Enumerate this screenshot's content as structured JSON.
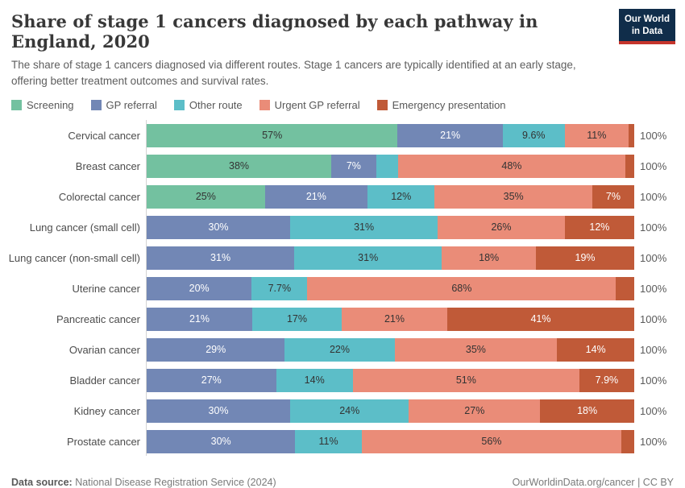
{
  "header": {
    "title": "Share of stage 1 cancers diagnosed by each pathway in England, 2020",
    "subtitle": "The share of stage 1 cancers diagnosed via different routes. Stage 1 cancers are typically identified at an early stage, offering better treatment outcomes and survival rates.",
    "logo": {
      "line1": "Our World",
      "line2": "in Data",
      "bg_color": "#102d4a",
      "accent_color": "#c5352c"
    }
  },
  "legend": {
    "items": [
      {
        "label": "Screening",
        "color": "#73c1a0"
      },
      {
        "label": "GP referral",
        "color": "#7287b5"
      },
      {
        "label": "Other route",
        "color": "#5cbec8"
      },
      {
        "label": "Urgent GP referral",
        "color": "#ea8c78"
      },
      {
        "label": "Emergency presentation",
        "color": "#c05a38"
      }
    ]
  },
  "chart_data": {
    "type": "bar",
    "stacked": true,
    "orientation": "horizontal",
    "unit": "%",
    "xlim": [
      0,
      100
    ],
    "grid": false,
    "legend_position": "top",
    "series": [
      {
        "name": "Screening",
        "color": "#73c1a0",
        "label_color": "#333333"
      },
      {
        "name": "GP referral",
        "color": "#7287b5",
        "label_color": "#ffffff"
      },
      {
        "name": "Other route",
        "color": "#5cbec8",
        "label_color": "#333333"
      },
      {
        "name": "Urgent GP referral",
        "color": "#ea8c78",
        "label_color": "#333333"
      },
      {
        "name": "Emergency presentation",
        "color": "#c05a38",
        "label_color": "#ffffff"
      }
    ],
    "categories": [
      "Cervical cancer",
      "Breast cancer",
      "Colorectal cancer",
      "Lung cancer (small cell)",
      "Lung cancer (non-small cell)",
      "Uterine cancer",
      "Pancreatic cancer",
      "Ovarian cancer",
      "Bladder cancer",
      "Kidney cancer",
      "Prostate cancer"
    ],
    "rows": [
      {
        "category": "Cervical cancer",
        "values": [
          57,
          21,
          9.6,
          11,
          1.4
        ],
        "labels": [
          "57%",
          "21%",
          "9.6%",
          "11%",
          ""
        ]
      },
      {
        "category": "Breast cancer",
        "values": [
          38,
          7,
          5,
          48,
          2
        ],
        "labels": [
          "38%",
          "7%",
          "",
          "48%",
          ""
        ]
      },
      {
        "category": "Colorectal cancer",
        "values": [
          25,
          21,
          12,
          35,
          7
        ],
        "labels": [
          "25%",
          "21%",
          "12%",
          "35%",
          "7%"
        ]
      },
      {
        "category": "Lung cancer (small cell)",
        "values": [
          0,
          30,
          31,
          26,
          12
        ],
        "labels": [
          "",
          "30%",
          "31%",
          "26%",
          "12%"
        ]
      },
      {
        "category": "Lung cancer (non-small cell)",
        "values": [
          0,
          31,
          31,
          18,
          19
        ],
        "labels": [
          "",
          "31%",
          "31%",
          "18%",
          "19%"
        ]
      },
      {
        "category": "Uterine cancer",
        "values": [
          0,
          20,
          7.7,
          68,
          4.3
        ],
        "labels": [
          "",
          "20%",
          "7.7%",
          "68%",
          ""
        ]
      },
      {
        "category": "Pancreatic cancer",
        "values": [
          0,
          21,
          17,
          21,
          41
        ],
        "labels": [
          "",
          "21%",
          "17%",
          "21%",
          "41%"
        ]
      },
      {
        "category": "Ovarian cancer",
        "values": [
          0,
          29,
          22,
          35,
          14
        ],
        "labels": [
          "",
          "29%",
          "22%",
          "35%",
          "14%"
        ]
      },
      {
        "category": "Bladder cancer",
        "values": [
          0,
          27,
          14,
          51,
          7.9
        ],
        "labels": [
          "",
          "27%",
          "14%",
          "51%",
          "7.9%"
        ]
      },
      {
        "category": "Kidney cancer",
        "values": [
          0,
          30,
          24,
          27,
          18
        ],
        "labels": [
          "",
          "30%",
          "24%",
          "27%",
          "18%"
        ]
      },
      {
        "category": "Prostate cancer",
        "values": [
          0,
          30,
          11,
          56,
          3
        ],
        "labels": [
          "",
          "30%",
          "11%",
          "56%",
          ""
        ]
      }
    ],
    "axis_total_label": "100%"
  },
  "footer": {
    "source_label": "Data source:",
    "source_value": " National Disease Registration Service (2024)",
    "url_text": "OurWorldinData.org/cancer",
    "separator": " | ",
    "license": "CC BY"
  }
}
